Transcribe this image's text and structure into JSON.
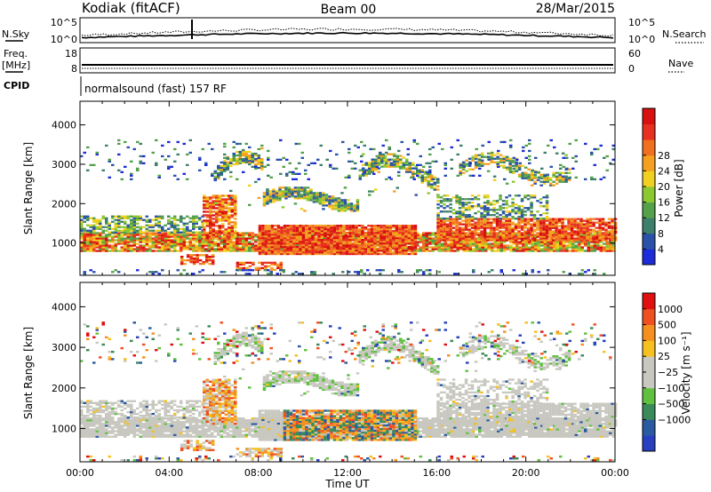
{
  "header": {
    "title": "Kodiak (fitACF)",
    "beam": "Beam 00",
    "date": "28/Mar/2015"
  },
  "noise_panel": {
    "left_label": "N.Sky",
    "right_label": "N.Search",
    "left_ticks": [
      "10^5",
      "10^0"
    ],
    "right_ticks": [
      "10^5",
      "10^0"
    ]
  },
  "freq_panel": {
    "left_label_line1": "Freq.",
    "left_label_line2": "[MHz]",
    "right_label": "Nave",
    "left_ticks": [
      "18",
      "8"
    ],
    "right_ticks": [
      "60",
      "0"
    ]
  },
  "cpid": {
    "label": "CPID",
    "text": "normalsound (fast) 157 RF"
  },
  "chart_data": [
    {
      "type": "heatmap",
      "quantity": "Power",
      "ylabel": "Slant Range [km]",
      "xlabel": "",
      "colorbar_label": "Power [dB]",
      "colorbar_ticks": [
        "4",
        "8",
        "12",
        "16",
        "20",
        "24",
        "28"
      ],
      "colorbar_colors": [
        "#1e2bd8",
        "#2a52a8",
        "#3d7f6a",
        "#55a04a",
        "#8cc830",
        "#f0d020",
        "#f5a020",
        "#f07020",
        "#e83020",
        "#d81010"
      ],
      "x_ticks": [
        "00:00",
        "04:00",
        "08:00",
        "12:00",
        "16:00",
        "20:00",
        "00:00"
      ],
      "y_ticks": [
        "1000",
        "2000",
        "3000",
        "4000"
      ],
      "xlim": [
        0,
        24
      ],
      "ylim": [
        180,
        4600
      ]
    },
    {
      "type": "heatmap",
      "quantity": "Velocity",
      "ylabel": "Slant Range [km]",
      "xlabel": "Time UT",
      "colorbar_label": "Velocity [m s⁻¹]",
      "colorbar_ticks": [
        "1000",
        "500",
        "100",
        "25",
        "−25",
        "−100",
        "−500",
        "−1000"
      ],
      "colorbar_colors": [
        "#2840c0",
        "#2a5aa0",
        "#3a8a5a",
        "#60c040",
        "#c8c8c0",
        "#c8c8c0",
        "#f5c020",
        "#f59020",
        "#f05020",
        "#e01010"
      ],
      "x_ticks": [
        "00:00",
        "04:00",
        "08:00",
        "12:00",
        "16:00",
        "20:00",
        "00:00"
      ],
      "y_ticks": [
        "1000",
        "2000",
        "3000",
        "4000"
      ],
      "xlim": [
        0,
        24
      ],
      "ylim": [
        180,
        4600
      ]
    }
  ]
}
